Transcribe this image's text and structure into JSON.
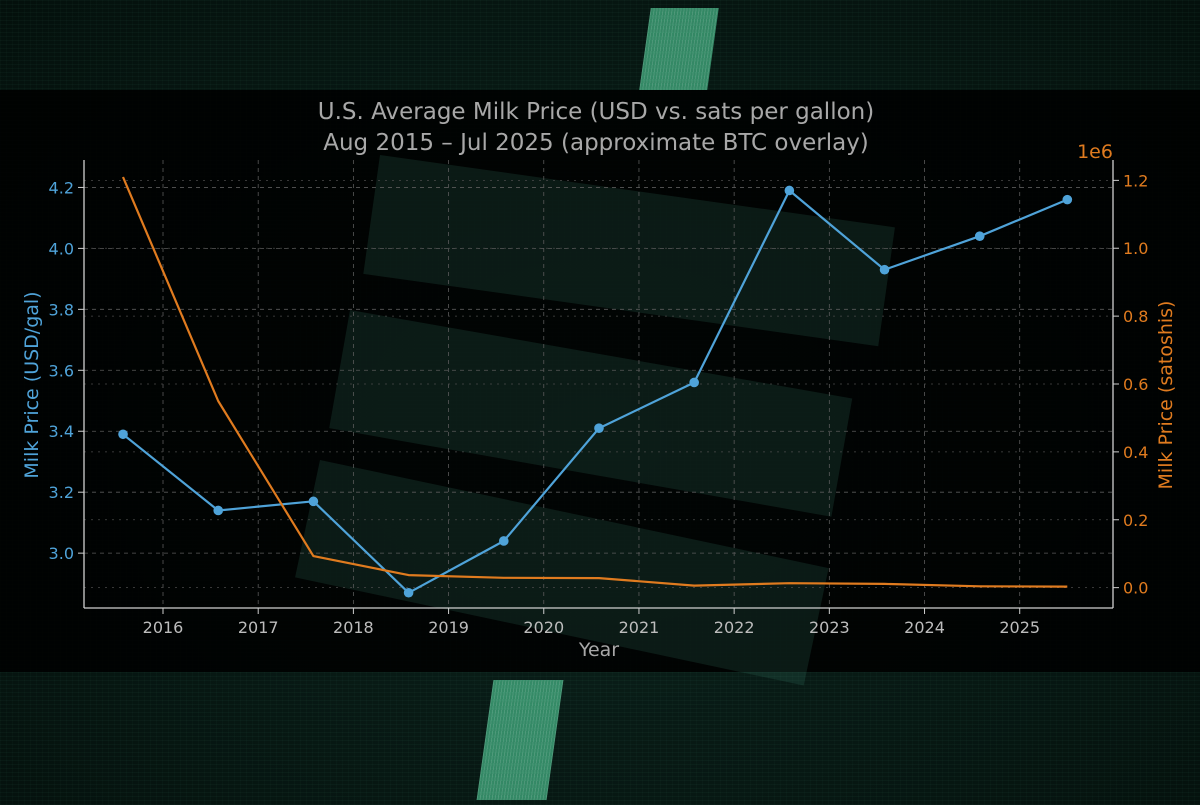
{
  "chart_data": {
    "type": "line",
    "title_line1": "U.S. Average Milk Price (USD vs. sats per gallon)",
    "title_line2": "Aug 2015 – Jul 2025 (approximate BTC overlay)",
    "xlabel": "Year",
    "ylabel_left": "Milk Price (USD/gal)",
    "ylabel_right": "Milk Price (satoshis)",
    "right_axis_offset_label": "1e6",
    "x_ticks": [
      "2016",
      "2017",
      "2018",
      "2019",
      "2020",
      "2021",
      "2022",
      "2023",
      "2024",
      "2025"
    ],
    "y_left_ticks": [
      "3.0",
      "3.2",
      "3.4",
      "3.6",
      "3.8",
      "4.0",
      "4.2"
    ],
    "y_right_ticks": [
      "0.0",
      "0.2",
      "0.4",
      "0.6",
      "0.8",
      "1.0",
      "1.2"
    ],
    "xlim": [
      2015.17,
      2025.98
    ],
    "ylim_left": [
      2.82,
      4.29
    ],
    "ylim_right": [
      -0.06,
      1.26
    ],
    "grid": true,
    "series": [
      {
        "axis": "left",
        "color": "#4fa3d9",
        "markers": true,
        "x": [
          2015.58,
          2016.58,
          2017.58,
          2018.58,
          2019.58,
          2020.58,
          2021.58,
          2022.58,
          2023.58,
          2024.58,
          2025.5
        ],
        "values": [
          3.39,
          3.14,
          3.17,
          2.87,
          3.04,
          3.41,
          3.56,
          4.19,
          3.93,
          4.04,
          4.16
        ]
      },
      {
        "axis": "right",
        "color": "#e07b1f",
        "markers": false,
        "x": [
          2015.58,
          2016.58,
          2017.58,
          2018.58,
          2019.58,
          2020.58,
          2021.58,
          2022.58,
          2023.58,
          2024.58,
          2025.5
        ],
        "values": [
          1.21,
          0.55,
          0.093,
          0.037,
          0.029,
          0.028,
          0.006,
          0.013,
          0.011,
          0.004,
          0.003
        ]
      }
    ]
  }
}
